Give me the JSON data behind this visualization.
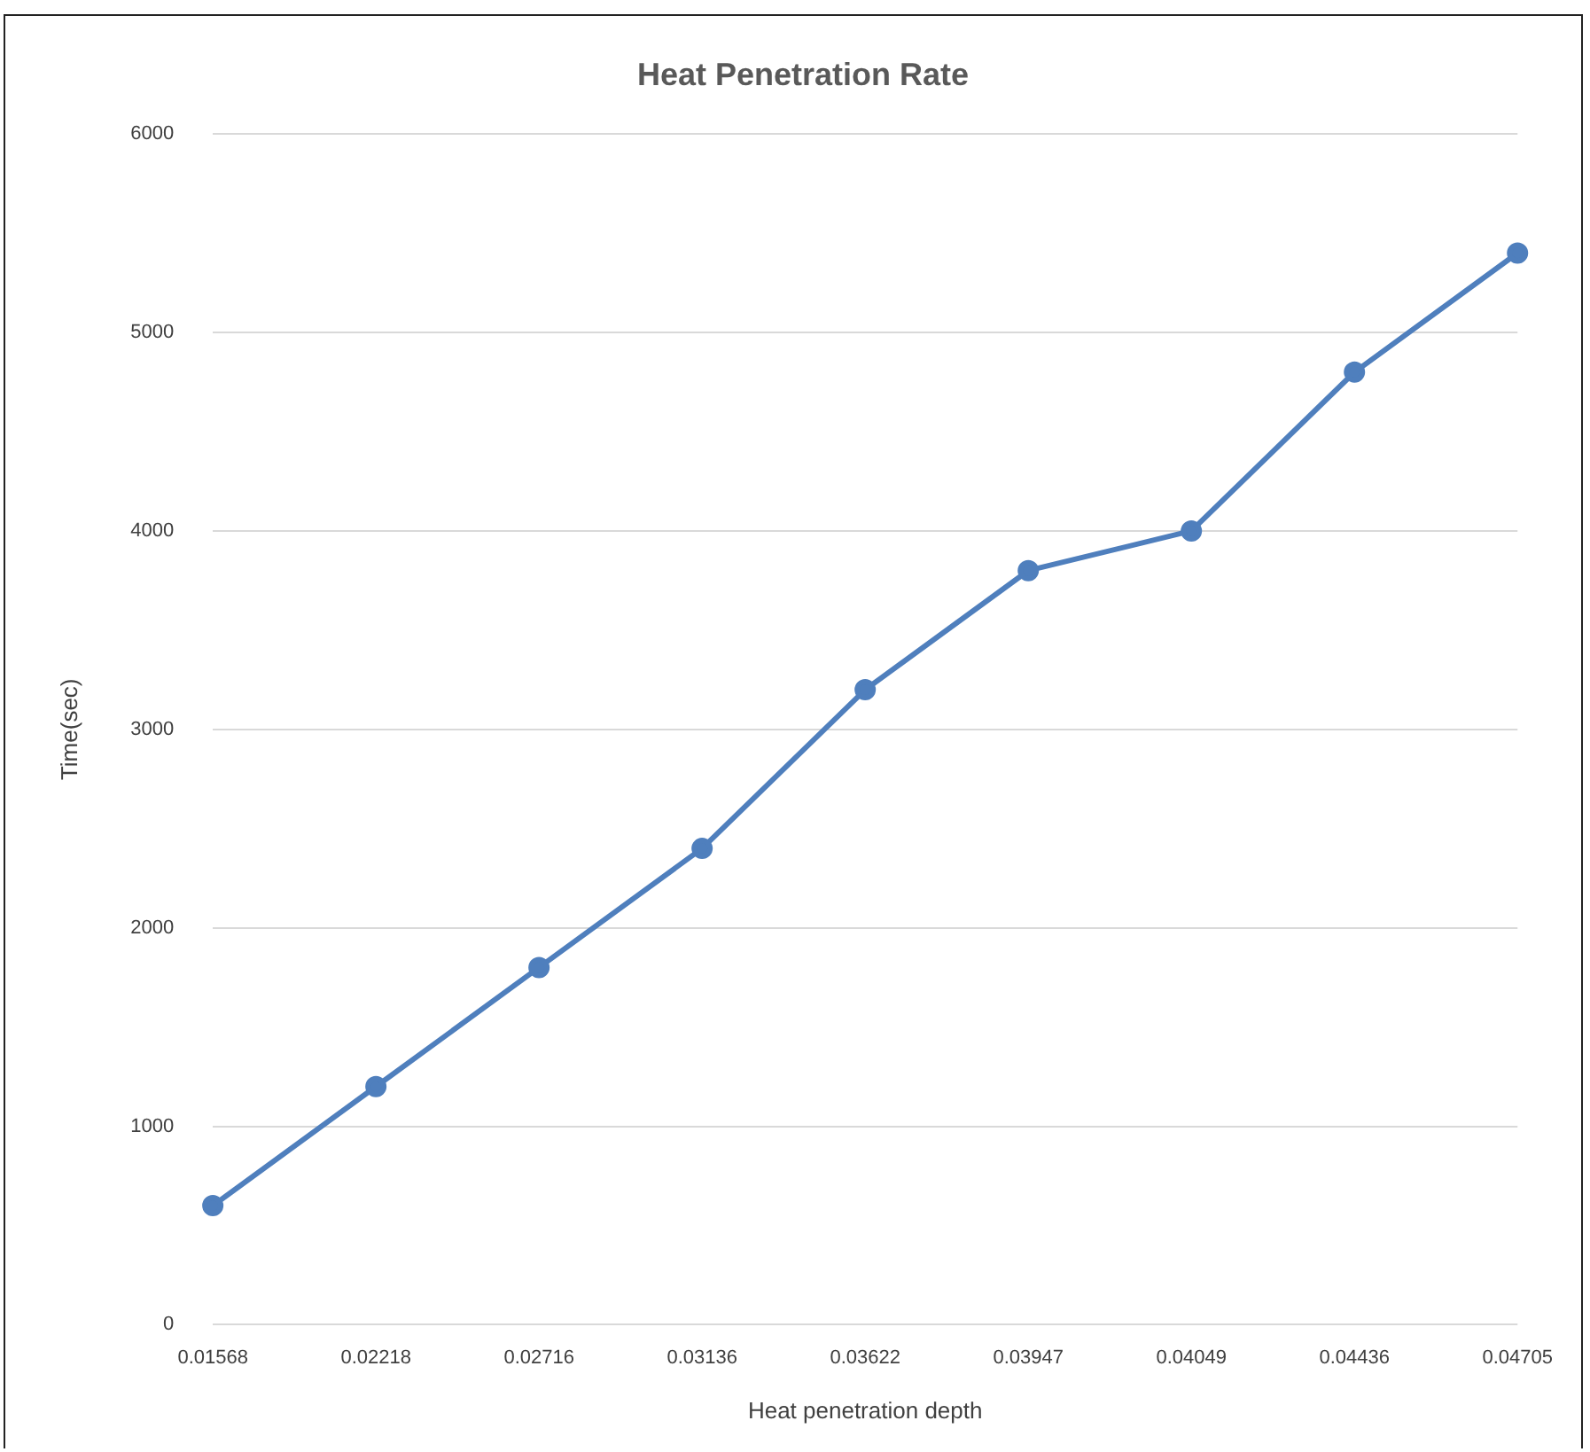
{
  "chart_data": {
    "type": "line",
    "title": "Heat Penetration Rate",
    "xlabel": "Heat penetration depth",
    "ylabel": "Time(sec)",
    "categories": [
      "0.01568",
      "0.02218",
      "0.02716",
      "0.03136",
      "0.03622",
      "0.03947",
      "0.04049",
      "0.04436",
      "0.04705"
    ],
    "series": [
      {
        "color": "#4f7fbd",
        "values": [
          600,
          1200,
          1800,
          2400,
          3200,
          3800,
          4000,
          4800,
          5400
        ]
      }
    ],
    "ylim": [
      0,
      6000
    ],
    "yticks": [
      0,
      1000,
      2000,
      3000,
      4000,
      5000,
      6000
    ],
    "grid": "y",
    "marker": "circle",
    "line_style": "solid"
  }
}
